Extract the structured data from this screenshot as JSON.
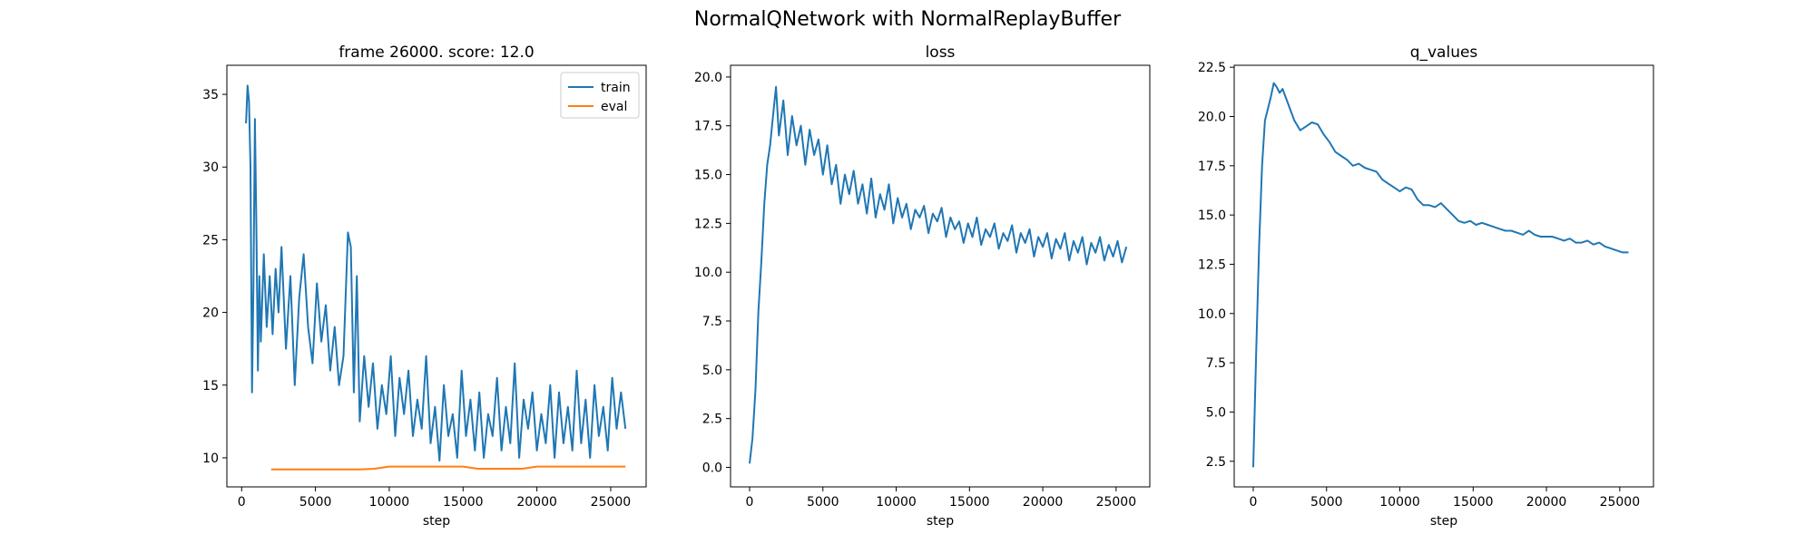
{
  "figure": {
    "suptitle": "NormalQNetwork with NormalReplayBuffer"
  },
  "colors": {
    "train": "#1f77b4",
    "eval": "#ff7f0e",
    "loss": "#1f77b4",
    "q_values": "#1f77b4"
  },
  "chart_data": [
    {
      "type": "line",
      "title": "frame 26000. score: 12.0",
      "xlabel": "step",
      "ylabel": "",
      "xlim": [
        -1000,
        27400
      ],
      "ylim": [
        8.0,
        37.0
      ],
      "xticks": [
        0,
        5000,
        10000,
        15000,
        20000,
        25000
      ],
      "yticks": [
        10,
        15,
        20,
        25,
        30,
        35
      ],
      "legend": "top-right",
      "series": [
        {
          "name": "train",
          "x": [
            300,
            400,
            500,
            600,
            700,
            800,
            900,
            1000,
            1100,
            1200,
            1300,
            1500,
            1700,
            1900,
            2100,
            2300,
            2500,
            2700,
            3000,
            3300,
            3600,
            3900,
            4200,
            4500,
            4800,
            5100,
            5400,
            5700,
            6000,
            6300,
            6600,
            6900,
            7200,
            7400,
            7600,
            7800,
            8000,
            8300,
            8600,
            8900,
            9200,
            9500,
            9800,
            10100,
            10400,
            10700,
            11000,
            11300,
            11600,
            11900,
            12200,
            12500,
            12800,
            13100,
            13400,
            13700,
            14000,
            14300,
            14600,
            14900,
            15200,
            15500,
            15800,
            16100,
            16400,
            16700,
            17000,
            17300,
            17600,
            17900,
            18200,
            18500,
            18800,
            19100,
            19400,
            19700,
            20000,
            20300,
            20600,
            20900,
            21200,
            21500,
            21800,
            22100,
            22400,
            22700,
            23000,
            23300,
            23600,
            23900,
            24200,
            24500,
            24800,
            25100,
            25400,
            25700,
            26000
          ],
          "y": [
            33.0,
            35.6,
            34.5,
            30.0,
            14.5,
            22.0,
            33.3,
            26.0,
            16.0,
            22.5,
            18.0,
            24.0,
            19.0,
            22.5,
            18.5,
            23.0,
            20.0,
            24.5,
            17.5,
            22.5,
            15.0,
            21.0,
            24.0,
            19.0,
            16.5,
            22.0,
            18.0,
            20.5,
            16.0,
            19.0,
            15.0,
            17.0,
            25.5,
            24.5,
            14.5,
            22.5,
            12.5,
            17.0,
            13.5,
            16.5,
            12.0,
            15.0,
            13.0,
            17.0,
            11.5,
            15.5,
            13.0,
            16.0,
            11.5,
            14.0,
            12.0,
            17.0,
            11.0,
            13.5,
            9.8,
            15.0,
            11.5,
            13.0,
            10.0,
            16.0,
            11.5,
            14.0,
            10.5,
            14.5,
            10.0,
            13.0,
            11.5,
            15.5,
            10.5,
            13.5,
            11.0,
            16.5,
            10.0,
            14.0,
            12.0,
            14.5,
            10.5,
            13.0,
            11.0,
            15.0,
            10.0,
            14.5,
            11.0,
            13.5,
            10.5,
            16.0,
            11.0,
            14.0,
            10.0,
            15.0,
            11.5,
            13.5,
            10.5,
            15.5,
            12.0,
            14.5,
            12.0
          ]
        },
        {
          "name": "eval",
          "x": [
            2000,
            4000,
            6000,
            8000,
            9000,
            10000,
            12000,
            13500,
            15000,
            16000,
            18000,
            19000,
            20000,
            22000,
            24000,
            26000
          ],
          "y": [
            9.2,
            9.2,
            9.2,
            9.2,
            9.25,
            9.4,
            9.4,
            9.4,
            9.4,
            9.25,
            9.25,
            9.25,
            9.4,
            9.4,
            9.4,
            9.4
          ]
        }
      ]
    },
    {
      "type": "line",
      "title": "loss",
      "xlabel": "step",
      "ylabel": "",
      "xlim": [
        -1300,
        27300
      ],
      "ylim": [
        -1.0,
        20.6
      ],
      "xticks": [
        0,
        5000,
        10000,
        15000,
        20000,
        25000
      ],
      "yticks": [
        0.0,
        2.5,
        5.0,
        7.5,
        10.0,
        12.5,
        15.0,
        17.5,
        20.0
      ],
      "series": [
        {
          "name": "",
          "x": [
            0,
            200,
            400,
            600,
            800,
            1000,
            1200,
            1400,
            1600,
            1800,
            2000,
            2300,
            2600,
            2900,
            3200,
            3500,
            3800,
            4100,
            4400,
            4700,
            5000,
            5300,
            5600,
            5900,
            6200,
            6500,
            6800,
            7100,
            7400,
            7700,
            8000,
            8300,
            8600,
            8900,
            9200,
            9500,
            9800,
            10100,
            10400,
            10700,
            11000,
            11300,
            11600,
            11900,
            12200,
            12500,
            12800,
            13100,
            13400,
            13700,
            14000,
            14300,
            14600,
            14900,
            15200,
            15500,
            15800,
            16100,
            16400,
            16700,
            17000,
            17300,
            17600,
            17900,
            18200,
            18500,
            18800,
            19100,
            19400,
            19700,
            20000,
            20300,
            20600,
            20900,
            21200,
            21500,
            21800,
            22100,
            22400,
            22700,
            23000,
            23300,
            23600,
            23900,
            24200,
            24500,
            24800,
            25100,
            25400,
            25700
          ],
          "y": [
            0.2,
            1.5,
            4.0,
            8.0,
            10.5,
            13.5,
            15.5,
            16.5,
            18.0,
            19.5,
            17.0,
            18.8,
            16.0,
            18.0,
            16.5,
            17.5,
            15.5,
            17.3,
            16.0,
            16.8,
            15.0,
            16.5,
            14.5,
            15.5,
            13.5,
            15.0,
            14.0,
            15.2,
            13.5,
            14.5,
            13.0,
            14.8,
            12.8,
            14.0,
            13.2,
            14.5,
            12.5,
            13.8,
            12.8,
            13.5,
            12.2,
            13.2,
            12.8,
            13.4,
            12.0,
            13.0,
            12.6,
            13.3,
            11.8,
            12.8,
            12.2,
            12.6,
            11.5,
            12.5,
            11.8,
            12.8,
            11.4,
            12.2,
            11.8,
            12.5,
            11.2,
            12.0,
            11.6,
            12.4,
            11.0,
            12.0,
            11.5,
            12.2,
            10.8,
            11.8,
            11.3,
            12.0,
            10.7,
            11.7,
            11.2,
            12.0,
            10.6,
            11.6,
            11.0,
            11.8,
            10.4,
            11.5,
            11.0,
            11.8,
            10.6,
            11.4,
            10.8,
            11.6,
            10.5,
            11.3
          ]
        }
      ]
    },
    {
      "type": "line",
      "title": "q_values",
      "xlabel": "step",
      "ylabel": "",
      "xlim": [
        -1300,
        27300
      ],
      "ylim": [
        1.2,
        22.6
      ],
      "xticks": [
        0,
        5000,
        10000,
        15000,
        20000,
        25000
      ],
      "yticks": [
        2.5,
        5.0,
        7.5,
        10.0,
        12.5,
        15.0,
        17.5,
        20.0,
        22.5
      ],
      "series": [
        {
          "name": "",
          "x": [
            0,
            200,
            400,
            600,
            800,
            1000,
            1200,
            1400,
            1600,
            1800,
            2000,
            2400,
            2800,
            3200,
            3600,
            4000,
            4400,
            4800,
            5200,
            5600,
            6000,
            6400,
            6800,
            7200,
            7600,
            8000,
            8400,
            8800,
            9200,
            9600,
            10000,
            10400,
            10800,
            11200,
            11600,
            12000,
            12400,
            12800,
            13200,
            13600,
            14000,
            14400,
            14800,
            15200,
            15600,
            16000,
            16400,
            16800,
            17200,
            17600,
            18000,
            18400,
            18800,
            19200,
            19600,
            20000,
            20400,
            20800,
            21200,
            21600,
            22000,
            22400,
            22800,
            23200,
            23600,
            24000,
            24400,
            24800,
            25200,
            25600
          ],
          "y": [
            2.2,
            8.0,
            13.5,
            17.5,
            19.8,
            20.4,
            21.0,
            21.7,
            21.5,
            21.2,
            21.4,
            20.6,
            19.8,
            19.3,
            19.5,
            19.7,
            19.6,
            19.1,
            18.7,
            18.2,
            18.0,
            17.8,
            17.5,
            17.6,
            17.4,
            17.3,
            17.2,
            16.8,
            16.6,
            16.4,
            16.2,
            16.4,
            16.3,
            15.8,
            15.5,
            15.5,
            15.4,
            15.6,
            15.3,
            15.0,
            14.7,
            14.6,
            14.7,
            14.5,
            14.6,
            14.5,
            14.4,
            14.3,
            14.2,
            14.2,
            14.1,
            14.0,
            14.2,
            14.0,
            13.9,
            13.9,
            13.9,
            13.8,
            13.7,
            13.8,
            13.6,
            13.6,
            13.7,
            13.5,
            13.6,
            13.4,
            13.3,
            13.2,
            13.1,
            13.1
          ]
        }
      ]
    }
  ]
}
